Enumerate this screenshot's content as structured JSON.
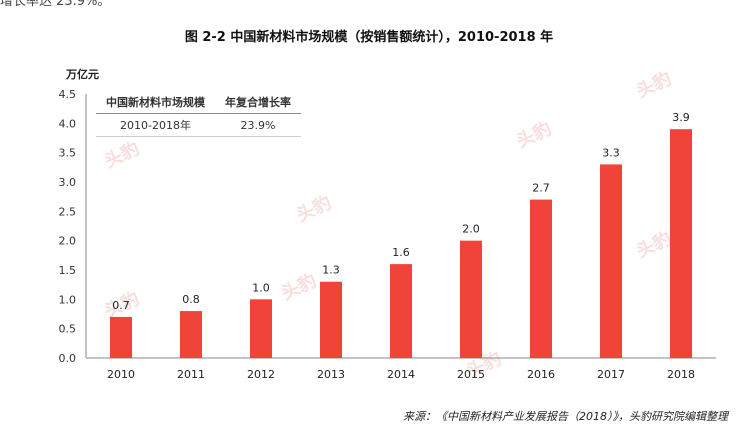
{
  "top_fragment": "增长率达 23.9%。",
  "title": "图 2-2  中国新材料市场规模（按销售额统计），2010-2018 年",
  "source": "来源：《中国新材料产业发展报告（2018）》，头豹研究院编辑整理",
  "table": {
    "headers": [
      "中国新材料市场规模",
      "年复合增长率"
    ],
    "row": [
      "2010-2018年",
      "23.9%"
    ]
  },
  "watermark_text": "头豹",
  "colors": {
    "bar": "#f0433a",
    "axis": "#888888",
    "watermark": "#f2c6c4"
  },
  "chart_data": {
    "type": "bar",
    "ylabel": "万亿元",
    "categories": [
      "2010",
      "2011",
      "2012",
      "2013",
      "2014",
      "2015",
      "2016",
      "2017",
      "2018"
    ],
    "values": [
      0.7,
      0.8,
      1.0,
      1.3,
      1.6,
      2.0,
      2.7,
      3.3,
      3.9
    ],
    "value_labels": [
      "0.7",
      "0.8",
      "1.0",
      "1.3",
      "1.6",
      "2.0",
      "2.7",
      "3.3",
      "3.9"
    ],
    "ylim": [
      0,
      4.5
    ],
    "yticks": [
      "0.0",
      "0.5",
      "1.0",
      "1.5",
      "2.0",
      "2.5",
      "3.0",
      "3.5",
      "4.0",
      "4.5"
    ],
    "grid": false
  }
}
